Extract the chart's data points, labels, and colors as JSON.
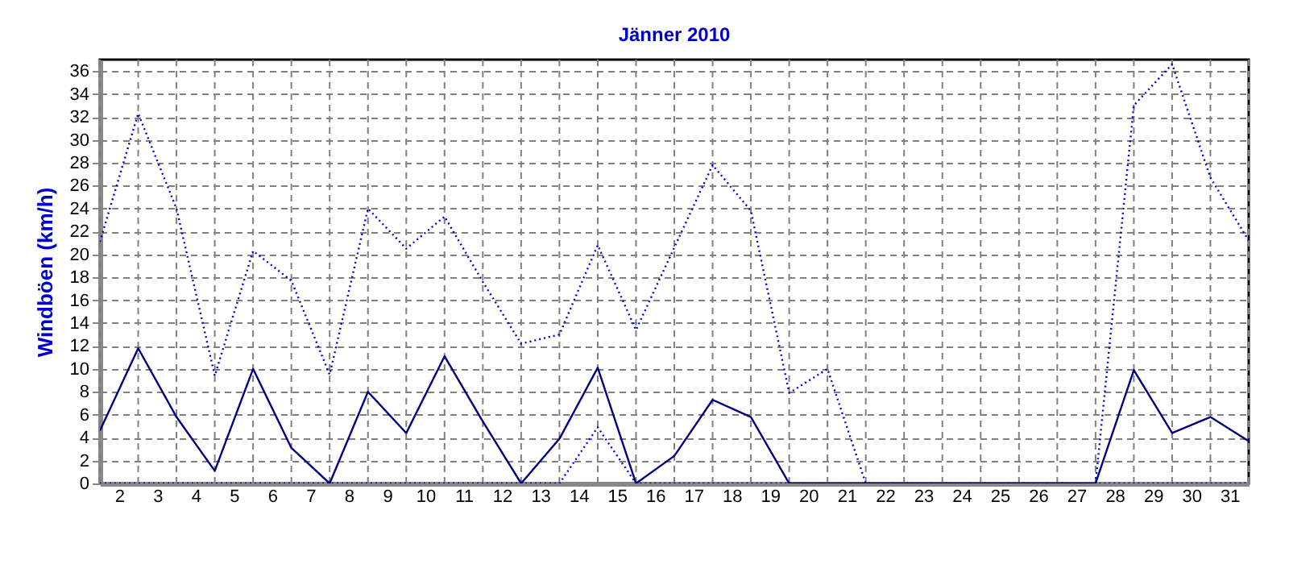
{
  "chart_data": {
    "type": "line",
    "title": "Jänner 2010",
    "ylabel": "Windböen  (km/h)",
    "x": [
      1,
      2,
      3,
      4,
      5,
      6,
      7,
      8,
      9,
      10,
      11,
      12,
      13,
      14,
      15,
      16,
      17,
      18,
      19,
      20,
      21,
      22,
      23,
      24,
      25,
      26,
      27,
      28,
      29,
      30,
      31
    ],
    "xlim": [
      1,
      31
    ],
    "xticks": [
      {
        "value": 1,
        "label": null
      },
      {
        "value": 1.5,
        "label": "2"
      },
      {
        "value": 2,
        "label": null
      },
      {
        "value": 2.5,
        "label": "3"
      },
      {
        "value": 3,
        "label": null
      },
      {
        "value": 3.5,
        "label": "4"
      },
      {
        "value": 4,
        "label": null
      },
      {
        "value": 4.5,
        "label": "5"
      },
      {
        "value": 5,
        "label": null
      },
      {
        "value": 5.5,
        "label": "6"
      },
      {
        "value": 6,
        "label": null
      },
      {
        "value": 6.5,
        "label": "7"
      },
      {
        "value": 7,
        "label": null
      },
      {
        "value": 7.5,
        "label": "8"
      },
      {
        "value": 8,
        "label": null
      },
      {
        "value": 8.5,
        "label": "9"
      },
      {
        "value": 9,
        "label": null
      },
      {
        "value": 9.5,
        "label": "10"
      },
      {
        "value": 10,
        "label": null
      },
      {
        "value": 10.5,
        "label": "11"
      },
      {
        "value": 11,
        "label": null
      },
      {
        "value": 11.5,
        "label": "12"
      },
      {
        "value": 12,
        "label": null
      },
      {
        "value": 12.5,
        "label": "13"
      },
      {
        "value": 13,
        "label": null
      },
      {
        "value": 13.5,
        "label": "14"
      },
      {
        "value": 14,
        "label": null
      },
      {
        "value": 14.5,
        "label": "15"
      },
      {
        "value": 15,
        "label": null
      },
      {
        "value": 15.5,
        "label": "16"
      },
      {
        "value": 16,
        "label": null
      },
      {
        "value": 16.5,
        "label": "17"
      },
      {
        "value": 17,
        "label": null
      },
      {
        "value": 17.5,
        "label": "18"
      },
      {
        "value": 18,
        "label": null
      },
      {
        "value": 18.5,
        "label": "19"
      },
      {
        "value": 19,
        "label": null
      },
      {
        "value": 19.5,
        "label": "20"
      },
      {
        "value": 20,
        "label": null
      },
      {
        "value": 20.5,
        "label": "21"
      },
      {
        "value": 21,
        "label": null
      },
      {
        "value": 21.5,
        "label": "22"
      },
      {
        "value": 22,
        "label": null
      },
      {
        "value": 22.5,
        "label": "23"
      },
      {
        "value": 23,
        "label": null
      },
      {
        "value": 23.5,
        "label": "24"
      },
      {
        "value": 24,
        "label": null
      },
      {
        "value": 24.5,
        "label": "25"
      },
      {
        "value": 25,
        "label": null
      },
      {
        "value": 25.5,
        "label": "26"
      },
      {
        "value": 26,
        "label": null
      },
      {
        "value": 26.5,
        "label": "27"
      },
      {
        "value": 27,
        "label": null
      },
      {
        "value": 27.5,
        "label": "28"
      },
      {
        "value": 28,
        "label": null
      },
      {
        "value": 28.5,
        "label": "29"
      },
      {
        "value": 29,
        "label": null
      },
      {
        "value": 29.5,
        "label": "30"
      },
      {
        "value": 30,
        "label": null
      },
      {
        "value": 30.5,
        "label": "31"
      },
      {
        "value": 31,
        "label": null
      }
    ],
    "ylim": [
      0,
      37
    ],
    "yticks": [
      0,
      2,
      4,
      6,
      8,
      10,
      12,
      14,
      16,
      18,
      20,
      22,
      24,
      26,
      28,
      30,
      32,
      34,
      36
    ],
    "grid": true,
    "legend": false,
    "marker": "none",
    "series": [
      {
        "color": "#0000ff",
        "line_style": "dotted",
        "values": [
          0,
          0,
          0,
          0,
          0,
          0,
          0,
          0,
          0,
          0,
          0,
          0,
          0,
          4.9,
          0,
          0,
          0,
          0,
          0,
          0,
          0,
          0,
          0,
          0,
          0,
          0,
          0,
          0,
          0,
          0,
          0
        ]
      },
      {
        "color": "#0000cc",
        "line_style": "dotted",
        "values": [
          21.1,
          32.3,
          24,
          9.4,
          20.3,
          17.7,
          9.5,
          24,
          20.5,
          23.3,
          17.6,
          12.2,
          13,
          20.8,
          13.4,
          20.6,
          27.8,
          23.8,
          7.9,
          10,
          0,
          0,
          0,
          0,
          0,
          0,
          0,
          33,
          36.6,
          26.7,
          21.2
        ]
      },
      {
        "color": "#000080",
        "line_style": "solid",
        "values": [
          4.6,
          11.8,
          5.8,
          1.1,
          10,
          3.1,
          0,
          8,
          4.4,
          11.1,
          5.4,
          0,
          3.9,
          10.1,
          0,
          2.4,
          7.3,
          5.8,
          0,
          0,
          0,
          0,
          0,
          0,
          0,
          0,
          0,
          9.9,
          4.4,
          5.8,
          3.7
        ]
      }
    ]
  }
}
